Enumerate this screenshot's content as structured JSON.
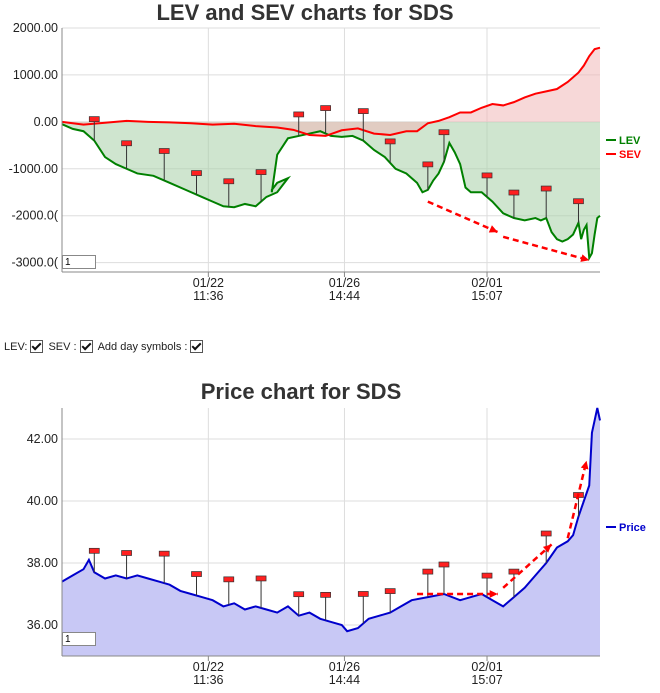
{
  "controls": {
    "lev_label": "LEV:",
    "sev_label": "SEV :",
    "day_symbols_label": "Add day symbols :",
    "lev_checked": true,
    "sev_checked": true,
    "day_symbols_checked": true
  },
  "zoom_value": "1",
  "chart_data": [
    {
      "type": "line",
      "title": "LEV and SEV charts for SDS",
      "y_ticks": [
        "2000.00",
        "1000.00",
        "0.00",
        "-1000.00",
        "-2000.0(",
        "-3000.0("
      ],
      "y_tick_values": [
        2000,
        1000,
        0,
        -1000,
        -2000,
        -3000
      ],
      "ylim": [
        -3200,
        2000
      ],
      "x_ticks": [
        {
          "x": 0.272,
          "line1": "01/22",
          "line2": "11:36"
        },
        {
          "x": 0.525,
          "line1": "01/26",
          "line2": "14:44"
        },
        {
          "x": 0.79,
          "line1": "02/01",
          "line2": "15:07"
        }
      ],
      "colors": {
        "lev": "#008000",
        "sev": "#ff0000",
        "lev_fill": "#c8e0c8",
        "sev_fill": "#f5cccc"
      },
      "series": [
        {
          "name": "LEV",
          "color": "#008000",
          "points": [
            [
              0,
              -50
            ],
            [
              0.02,
              -150
            ],
            [
              0.04,
              -200
            ],
            [
              0.06,
              -400
            ],
            [
              0.08,
              -750
            ],
            [
              0.1,
              -900
            ],
            [
              0.12,
              -1000
            ],
            [
              0.14,
              -1100
            ],
            [
              0.17,
              -1150
            ],
            [
              0.2,
              -1300
            ],
            [
              0.23,
              -1450
            ],
            [
              0.26,
              -1600
            ],
            [
              0.28,
              -1700
            ],
            [
              0.3,
              -1800
            ],
            [
              0.32,
              -1820
            ],
            [
              0.34,
              -1750
            ],
            [
              0.36,
              -1800
            ],
            [
              0.38,
              -1600
            ],
            [
              0.4,
              -1500
            ],
            [
              0.42,
              -1200
            ],
            [
              0.4,
              -1300
            ],
            [
              0.39,
              -1450
            ],
            [
              0.39,
              -1500
            ],
            [
              0.4,
              -700
            ],
            [
              0.42,
              -350
            ],
            [
              0.44,
              -300
            ],
            [
              0.46,
              -250
            ],
            [
              0.48,
              -200
            ],
            [
              0.5,
              -300
            ],
            [
              0.52,
              -320
            ],
            [
              0.54,
              -300
            ],
            [
              0.56,
              -400
            ],
            [
              0.58,
              -600
            ],
            [
              0.6,
              -750
            ],
            [
              0.62,
              -1000
            ],
            [
              0.64,
              -1100
            ],
            [
              0.66,
              -1300
            ],
            [
              0.67,
              -1500
            ],
            [
              0.68,
              -1450
            ],
            [
              0.69,
              -1250
            ],
            [
              0.7,
              -1100
            ],
            [
              0.71,
              -850
            ],
            [
              0.72,
              -450
            ],
            [
              0.73,
              -650
            ],
            [
              0.74,
              -900
            ],
            [
              0.75,
              -1400
            ],
            [
              0.76,
              -1500
            ],
            [
              0.78,
              -1500
            ],
            [
              0.8,
              -1700
            ],
            [
              0.82,
              -1950
            ],
            [
              0.84,
              -2050
            ],
            [
              0.86,
              -2100
            ],
            [
              0.88,
              -2050
            ],
            [
              0.89,
              -2100
            ],
            [
              0.9,
              -2050
            ],
            [
              0.91,
              -2350
            ],
            [
              0.92,
              -2500
            ],
            [
              0.93,
              -2550
            ],
            [
              0.94,
              -2500
            ],
            [
              0.95,
              -2400
            ],
            [
              0.96,
              -2150
            ],
            [
              0.965,
              -2500
            ],
            [
              0.97,
              -2300
            ],
            [
              0.975,
              -2200
            ],
            [
              0.98,
              -2900
            ],
            [
              0.985,
              -2800
            ],
            [
              0.99,
              -2400
            ],
            [
              0.995,
              -2050
            ],
            [
              1.0,
              -2000
            ]
          ]
        },
        {
          "name": "SEV",
          "color": "#ff0000",
          "points": [
            [
              0,
              0
            ],
            [
              0.04,
              -60
            ],
            [
              0.08,
              -20
            ],
            [
              0.12,
              20
            ],
            [
              0.16,
              0
            ],
            [
              0.2,
              -10
            ],
            [
              0.24,
              -30
            ],
            [
              0.28,
              -60
            ],
            [
              0.32,
              -40
            ],
            [
              0.36,
              -90
            ],
            [
              0.4,
              -120
            ],
            [
              0.43,
              -170
            ],
            [
              0.46,
              -280
            ],
            [
              0.49,
              -300
            ],
            [
              0.52,
              -180
            ],
            [
              0.55,
              -140
            ],
            [
              0.58,
              -250
            ],
            [
              0.61,
              -280
            ],
            [
              0.64,
              -200
            ],
            [
              0.66,
              -200
            ],
            [
              0.68,
              -30
            ],
            [
              0.7,
              20
            ],
            [
              0.72,
              100
            ],
            [
              0.74,
              200
            ],
            [
              0.76,
              200
            ],
            [
              0.78,
              300
            ],
            [
              0.8,
              380
            ],
            [
              0.82,
              350
            ],
            [
              0.84,
              420
            ],
            [
              0.86,
              520
            ],
            [
              0.88,
              600
            ],
            [
              0.9,
              650
            ],
            [
              0.92,
              700
            ],
            [
              0.94,
              850
            ],
            [
              0.96,
              1050
            ],
            [
              0.97,
              1200
            ],
            [
              0.98,
              1400
            ],
            [
              0.99,
              1550
            ],
            [
              1.0,
              1580
            ]
          ]
        }
      ],
      "day_markers": [
        0.06,
        0.12,
        0.19,
        0.25,
        0.31,
        0.37,
        0.44,
        0.49,
        0.56,
        0.61,
        0.68,
        0.71,
        0.79,
        0.84,
        0.9,
        0.96,
        1.0
      ]
    },
    {
      "type": "area",
      "title": "Price chart for SDS",
      "y_ticks": [
        "42.00",
        "40.00",
        "38.00",
        "36.00"
      ],
      "y_tick_values": [
        42,
        40,
        38,
        36
      ],
      "ylim": [
        35,
        43
      ],
      "x_ticks": [
        {
          "x": 0.272,
          "line1": "01/22",
          "line2": "11:36"
        },
        {
          "x": 0.525,
          "line1": "01/26",
          "line2": "14:44"
        },
        {
          "x": 0.79,
          "line1": "02/01",
          "line2": "15:07"
        }
      ],
      "colors": {
        "line": "#0000cc",
        "fill": "#ccccf5"
      },
      "series": [
        {
          "name": "Price",
          "color": "#0000cc",
          "points": [
            [
              0,
              37.4
            ],
            [
              0.02,
              37.6
            ],
            [
              0.04,
              37.8
            ],
            [
              0.05,
              38.1
            ],
            [
              0.06,
              37.7
            ],
            [
              0.08,
              37.5
            ],
            [
              0.1,
              37.6
            ],
            [
              0.12,
              37.5
            ],
            [
              0.14,
              37.6
            ],
            [
              0.16,
              37.5
            ],
            [
              0.18,
              37.4
            ],
            [
              0.2,
              37.3
            ],
            [
              0.22,
              37.1
            ],
            [
              0.24,
              37.0
            ],
            [
              0.26,
              36.9
            ],
            [
              0.28,
              36.8
            ],
            [
              0.3,
              36.6
            ],
            [
              0.32,
              36.7
            ],
            [
              0.34,
              36.5
            ],
            [
              0.36,
              36.6
            ],
            [
              0.38,
              36.5
            ],
            [
              0.4,
              36.4
            ],
            [
              0.42,
              36.6
            ],
            [
              0.44,
              36.3
            ],
            [
              0.46,
              36.4
            ],
            [
              0.48,
              36.2
            ],
            [
              0.5,
              36.1
            ],
            [
              0.52,
              36.0
            ],
            [
              0.53,
              35.8
            ],
            [
              0.55,
              35.9
            ],
            [
              0.57,
              36.2
            ],
            [
              0.59,
              36.3
            ],
            [
              0.61,
              36.4
            ],
            [
              0.63,
              36.6
            ],
            [
              0.65,
              36.8
            ],
            [
              0.68,
              36.9
            ],
            [
              0.71,
              37.0
            ],
            [
              0.74,
              36.8
            ],
            [
              0.76,
              36.9
            ],
            [
              0.78,
              37.0
            ],
            [
              0.8,
              36.8
            ],
            [
              0.82,
              36.6
            ],
            [
              0.84,
              36.9
            ],
            [
              0.86,
              37.2
            ],
            [
              0.88,
              37.6
            ],
            [
              0.9,
              38.0
            ],
            [
              0.92,
              38.5
            ],
            [
              0.94,
              38.7
            ],
            [
              0.95,
              38.9
            ],
            [
              0.96,
              39.5
            ],
            [
              0.97,
              40.0
            ],
            [
              0.98,
              40.5
            ],
            [
              0.985,
              42.2
            ],
            [
              0.99,
              42.6
            ],
            [
              0.995,
              43.0
            ],
            [
              1.0,
              42.6
            ]
          ]
        }
      ],
      "day_markers": [
        0.06,
        0.12,
        0.19,
        0.25,
        0.31,
        0.37,
        0.44,
        0.49,
        0.56,
        0.61,
        0.68,
        0.71,
        0.79,
        0.84,
        0.9,
        0.96,
        1.0
      ]
    }
  ]
}
